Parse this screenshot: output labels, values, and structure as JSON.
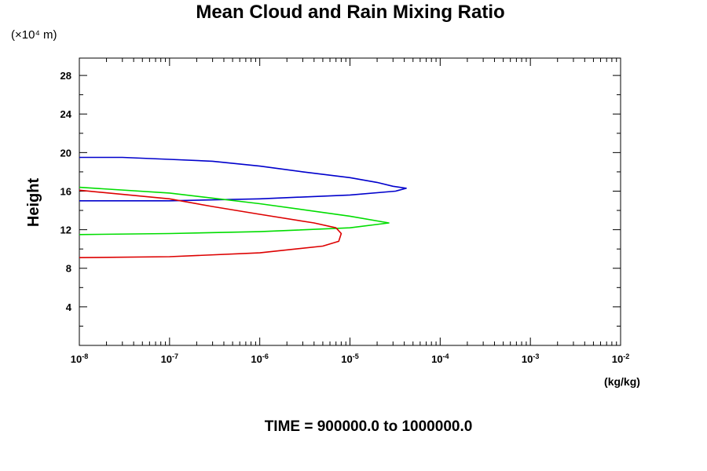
{
  "chart_data": {
    "type": "line",
    "title": "Mean Cloud and Rain Mixing Ratio",
    "ylabel": "Height",
    "y_scale_note": "(×10⁴ m)",
    "x_unit": "(kg/kg)",
    "footer": "TIME = 900000.0 to 1000000.0",
    "x_scale": "log",
    "xlim": [
      1e-08,
      0.01
    ],
    "ylim": [
      0,
      29.8
    ],
    "grid": false,
    "x_tick_labels": [
      {
        "base": "10",
        "exp": "-8"
      },
      {
        "base": "10",
        "exp": "-7"
      },
      {
        "base": "10",
        "exp": "-6"
      },
      {
        "base": "10",
        "exp": "-5"
      },
      {
        "base": "10",
        "exp": "-4"
      },
      {
        "base": "10",
        "exp": "-3"
      },
      {
        "base": "10",
        "exp": "-2"
      }
    ],
    "y_ticks": [
      4,
      8,
      12,
      16,
      20,
      24,
      28
    ],
    "series": [
      {
        "color": "#0000cc",
        "points": [
          [
            1e-08,
            19.5
          ],
          [
            3e-08,
            19.5
          ],
          [
            1e-07,
            19.3
          ],
          [
            3e-07,
            19.1
          ],
          [
            1e-06,
            18.6
          ],
          [
            3e-06,
            18.0
          ],
          [
            1e-05,
            17.4
          ],
          [
            2e-05,
            16.9
          ],
          [
            3e-05,
            16.5
          ],
          [
            4.2e-05,
            16.3
          ],
          [
            3.2e-05,
            16.0
          ],
          [
            1e-05,
            15.6
          ],
          [
            1e-06,
            15.2
          ],
          [
            1e-07,
            15.0
          ],
          [
            1e-08,
            15.0
          ]
        ]
      },
      {
        "color": "#00dd00",
        "points": [
          [
            1e-08,
            16.4
          ],
          [
            1e-07,
            15.8
          ],
          [
            1e-06,
            14.7
          ],
          [
            1e-05,
            13.4
          ],
          [
            2.7e-05,
            12.7
          ],
          [
            1e-05,
            12.2
          ],
          [
            1e-06,
            11.8
          ],
          [
            1e-07,
            11.6
          ],
          [
            1e-08,
            11.5
          ]
        ]
      },
      {
        "color": "#dd0000",
        "points": [
          [
            1e-08,
            16.1
          ],
          [
            1e-07,
            15.2
          ],
          [
            3e-07,
            14.4
          ],
          [
            1e-06,
            13.6
          ],
          [
            4e-06,
            12.7
          ],
          [
            7e-06,
            12.2
          ],
          [
            8e-06,
            11.6
          ],
          [
            7.5e-06,
            10.8
          ],
          [
            5e-06,
            10.3
          ],
          [
            1e-06,
            9.6
          ],
          [
            1e-07,
            9.2
          ],
          [
            1e-08,
            9.1
          ]
        ]
      }
    ]
  }
}
